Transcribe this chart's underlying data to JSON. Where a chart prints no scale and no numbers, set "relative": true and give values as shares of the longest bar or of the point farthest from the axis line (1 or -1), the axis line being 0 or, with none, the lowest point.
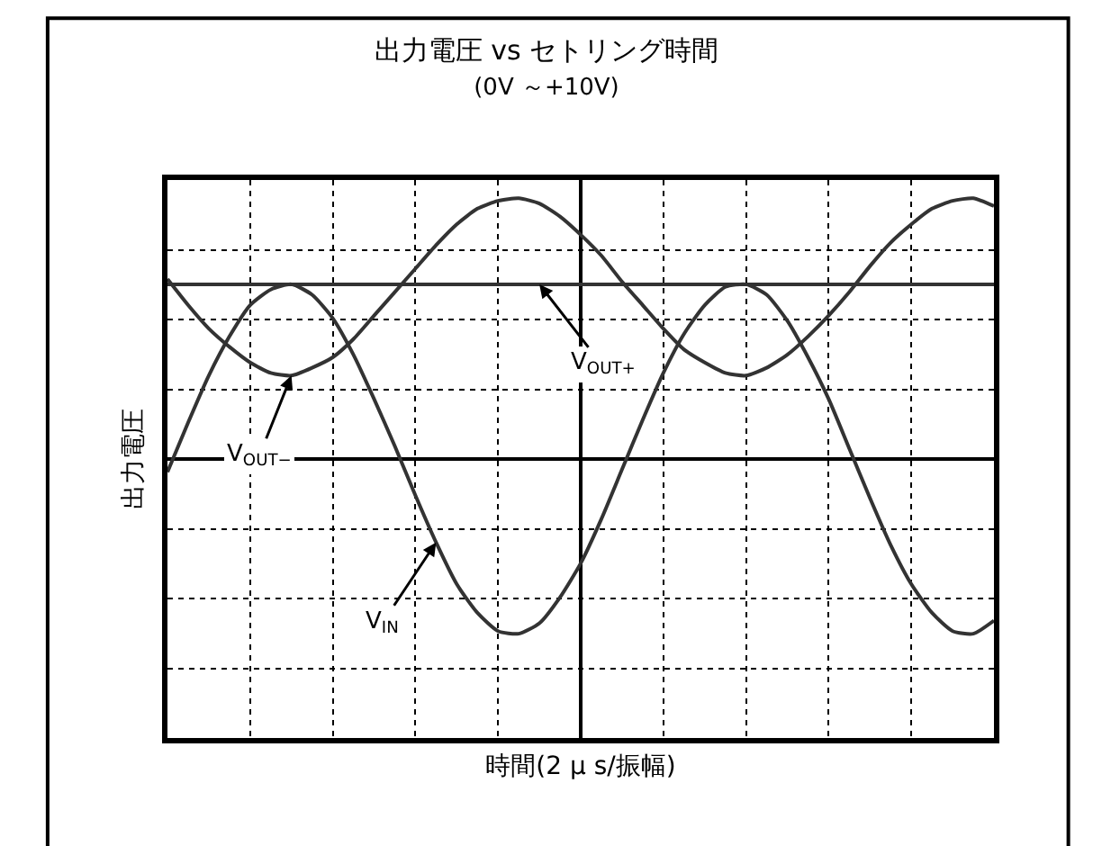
{
  "chart_data": {
    "type": "line",
    "title": "出力電圧 vs セトリング時間",
    "subtitle": "(0V ～+10V)",
    "xlabel": "時間(2 μ s/振幅)",
    "ylabel": "出力電圧",
    "relative": true,
    "grid": true,
    "legend": false,
    "marker": "none",
    "line_style": "solid",
    "categories": [
      null,
      null,
      null,
      null,
      null,
      null,
      null,
      null,
      null,
      null,
      null,
      null,
      null,
      null,
      null,
      null,
      null,
      null,
      null,
      null,
      null,
      null,
      null,
      null,
      null,
      null,
      null,
      null,
      null,
      null,
      null,
      null,
      null,
      null,
      null,
      null,
      null,
      null,
      null,
      null,
      null
    ],
    "series": [
      {
        "name": "V$_{OUT+}$",
        "color": "#333333",
        "values": [
          0.67,
          0.67,
          0.67,
          0.67,
          0.67,
          0.67,
          0.67,
          0.67,
          0.67,
          0.67,
          0.67,
          0.67,
          0.67,
          0.67,
          0.67,
          0.67,
          0.67,
          0.67,
          0.67,
          0.67,
          0.67,
          0.67,
          0.67,
          0.67,
          0.67,
          0.67,
          0.67,
          0.67,
          0.67,
          0.67,
          0.67,
          0.67,
          0.67,
          0.67,
          0.67,
          0.67,
          0.67,
          0.67,
          0.67,
          0.67,
          0.67
        ]
      },
      {
        "name": "V$_{OUT−}$",
        "color": "#333333",
        "values": [
          0.69,
          0.59,
          0.5,
          0.43,
          0.37,
          0.33,
          0.32,
          0.35,
          0.39,
          0.46,
          0.55,
          0.64,
          0.73,
          0.82,
          0.9,
          0.96,
          0.99,
          1.0,
          0.98,
          0.93,
          0.86,
          0.78,
          0.68,
          0.59,
          0.5,
          0.42,
          0.37,
          0.33,
          0.32,
          0.35,
          0.4,
          0.47,
          0.55,
          0.64,
          0.74,
          0.83,
          0.9,
          0.96,
          0.99,
          1.0,
          0.97
        ]
      },
      {
        "name": "V$_{IN}$",
        "color": "#333333",
        "values": [
          -0.05,
          0.14,
          0.32,
          0.47,
          0.59,
          0.65,
          0.67,
          0.63,
          0.54,
          0.4,
          0.23,
          0.05,
          -0.14,
          -0.32,
          -0.48,
          -0.59,
          -0.66,
          -0.67,
          -0.63,
          -0.53,
          -0.4,
          -0.23,
          -0.04,
          0.15,
          0.33,
          0.48,
          0.59,
          0.66,
          0.67,
          0.63,
          0.53,
          0.39,
          0.23,
          0.04,
          -0.15,
          -0.33,
          -0.48,
          -0.59,
          -0.66,
          -0.67,
          -0.62
        ]
      }
    ]
  }
}
